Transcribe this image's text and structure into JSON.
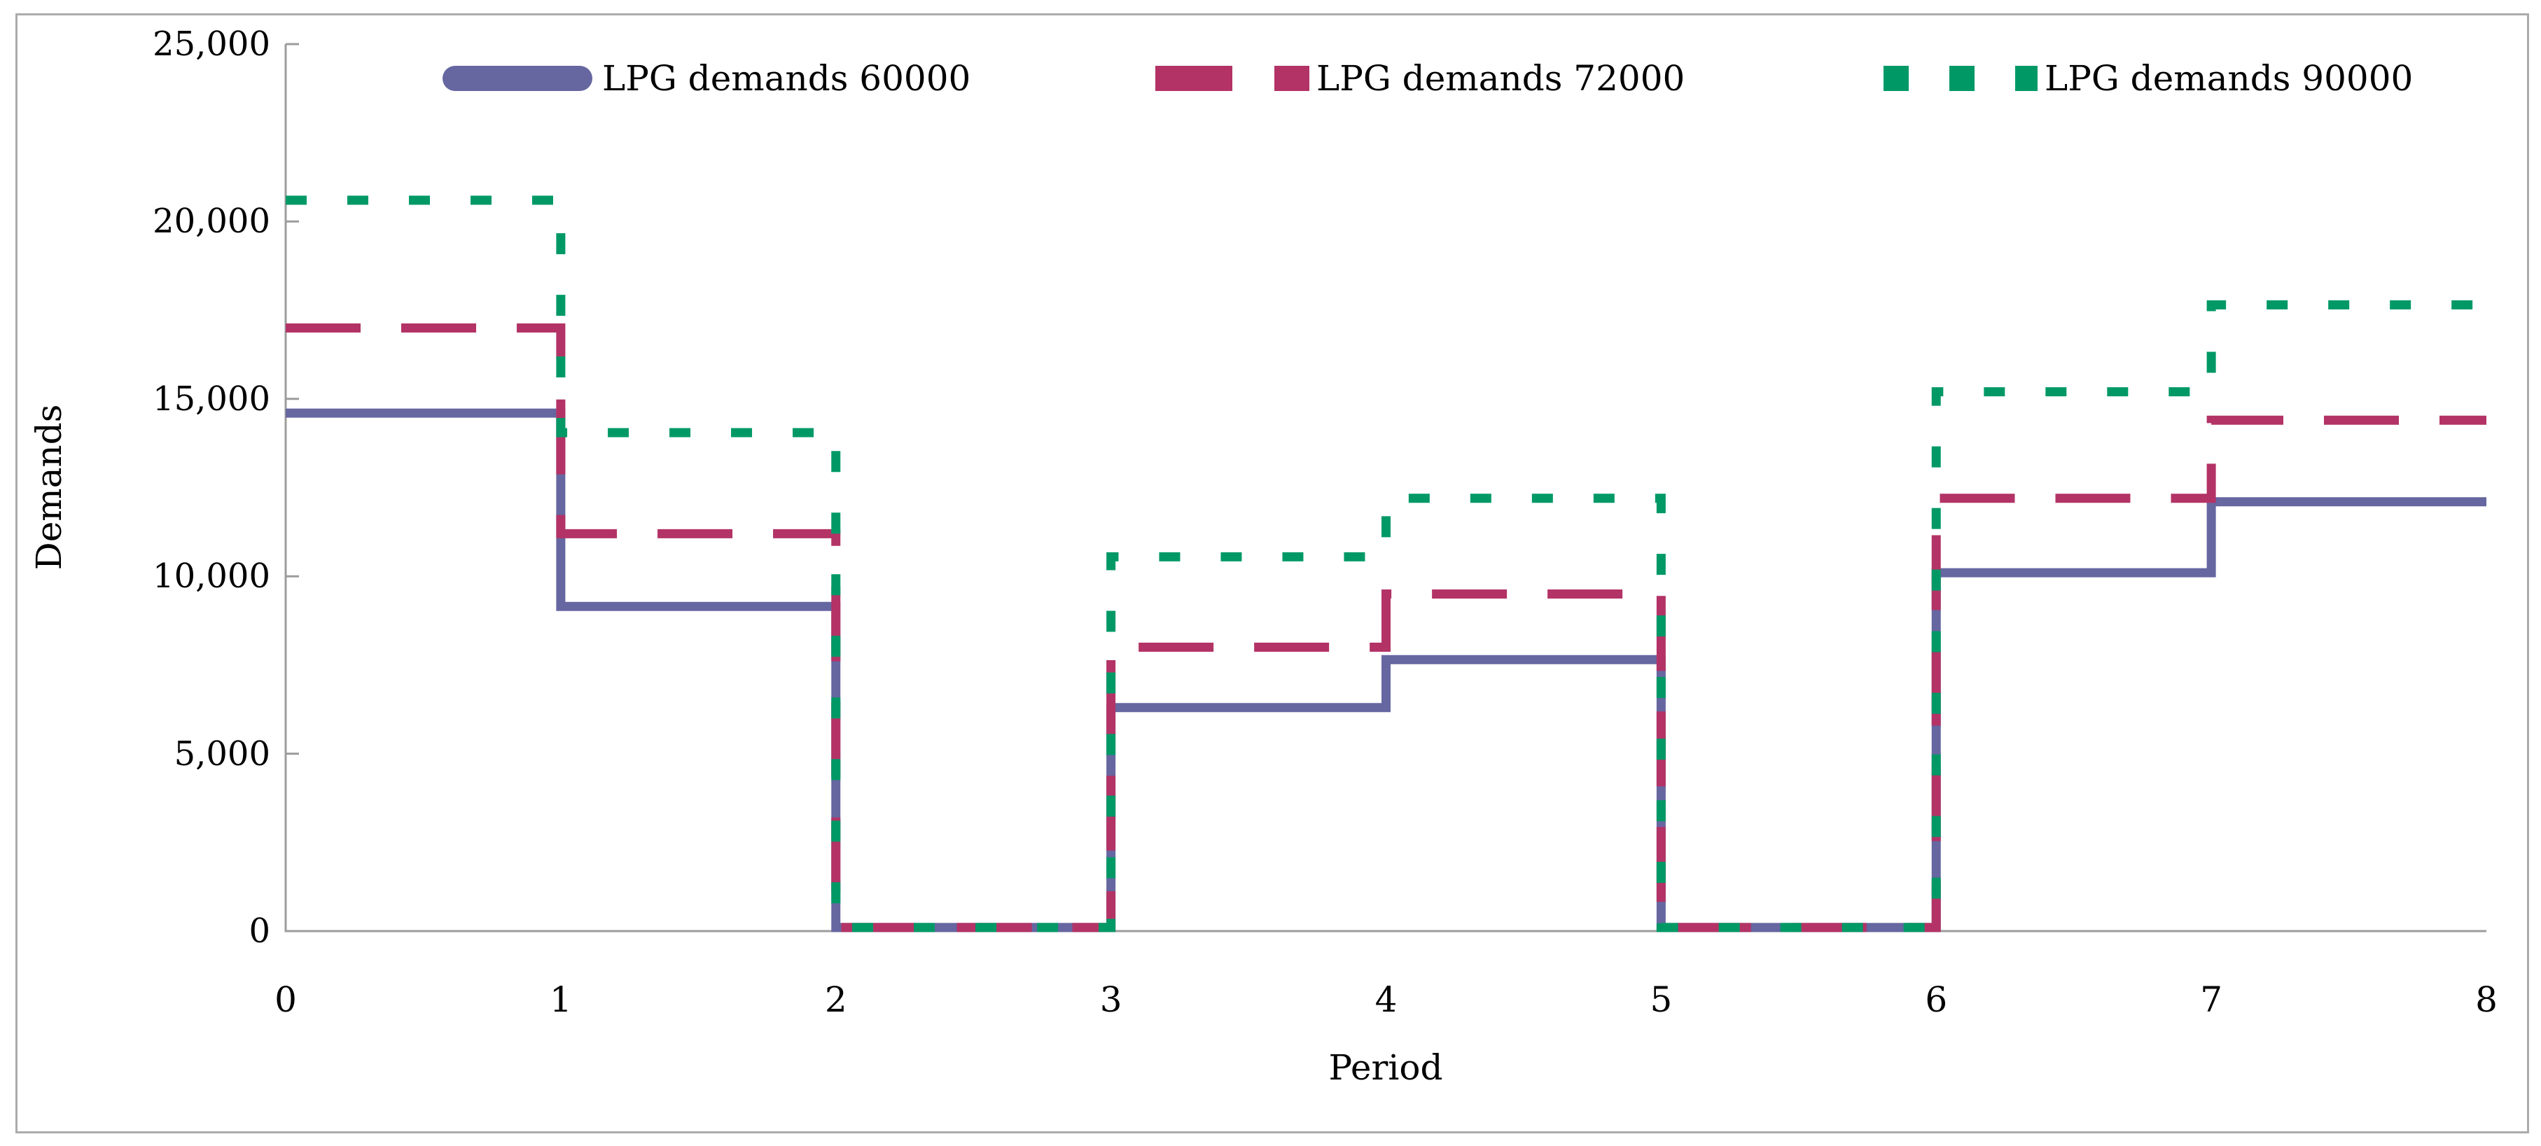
{
  "figure": {
    "background": "#ffffff",
    "border_color": "#ABABAB"
  },
  "axes": {
    "y_title": "Demands",
    "x_title": "Period",
    "axis_color": "#9C9C9C"
  },
  "legend": {
    "entries": [
      {
        "label": "LPG demands 60000"
      },
      {
        "label": "LPG demands 72000"
      },
      {
        "label": "LPG demands 90000"
      }
    ]
  },
  "chart_data": {
    "type": "line",
    "subtype": "step",
    "title": "",
    "xlabel": "Period",
    "ylabel": "Demands",
    "xlim": [
      0,
      8
    ],
    "ylim": [
      0,
      25000
    ],
    "grid": false,
    "legend_position": "top",
    "axis_color": "#9C9C9C",
    "x_boundaries": [
      0,
      1,
      2,
      3,
      4,
      5,
      6,
      7,
      8
    ],
    "xticks": [
      "0",
      "1",
      "2",
      "3",
      "4",
      "5",
      "6",
      "7",
      "8"
    ],
    "ytick_values": [
      0,
      5000,
      10000,
      15000,
      20000,
      25000
    ],
    "yticks": [
      "0",
      "5,000",
      "10,000",
      "15,000",
      "20,000",
      "25,000"
    ],
    "series": [
      {
        "name": "LPG demands 60000",
        "color": "#6666A1",
        "style": "solid",
        "values": [
          14600,
          9150,
          100,
          6300,
          7650,
          100,
          10100,
          12100
        ]
      },
      {
        "name": "LPG demands 72000",
        "color": "#B33366",
        "style": "dashed",
        "values": [
          17000,
          11200,
          100,
          8000,
          9500,
          100,
          12200,
          14400
        ]
      },
      {
        "name": "LPG demands 90000",
        "color": "#009966",
        "style": "dotted",
        "values": [
          20600,
          14050,
          100,
          10550,
          12200,
          100,
          15200,
          17650
        ]
      }
    ]
  }
}
